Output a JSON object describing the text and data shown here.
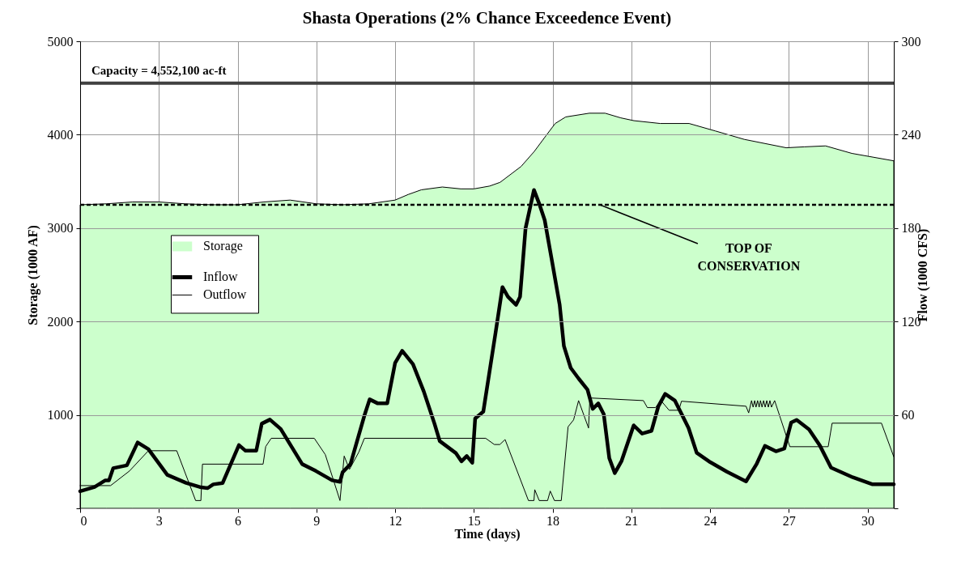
{
  "chart_data": {
    "type": "line",
    "title": "Shasta Operations (2% Chance Exceedence Event)",
    "xlabel": "Time (days)",
    "ylabel": "Storage (1000 AF)",
    "y2label": "Flow (1000 CFS)",
    "xlim": [
      0,
      31
    ],
    "xticks": [
      0,
      3,
      6,
      9,
      12,
      15,
      18,
      21,
      24,
      27,
      30
    ],
    "ylim": [
      0,
      5000
    ],
    "yticks": [
      {
        "value": 0,
        "label": null
      },
      1000,
      2000,
      3000,
      4000,
      5000
    ],
    "y2lim": [
      0,
      300
    ],
    "y2ticks": [
      {
        "value": 0,
        "label": null
      },
      60,
      120,
      180,
      240,
      300
    ],
    "grid": true,
    "legend": "left",
    "series": [
      {
        "name": "Storage",
        "type": "area",
        "color": "#ccffcc",
        "x": [
          0,
          1,
          2,
          3,
          4,
          5,
          6,
          7,
          8,
          9,
          10,
          11,
          12,
          12.5,
          13,
          13.8,
          14.5,
          15,
          15.6,
          16,
          16.8,
          17.3,
          17.75,
          18.1,
          18.5,
          19.4,
          20,
          20.6,
          21.1,
          22.1,
          23.2,
          24.2,
          25.3,
          26.9,
          27.6,
          28.4,
          29.4,
          30.2,
          31
        ],
        "values": [
          3250,
          3260,
          3280,
          3280,
          3260,
          3250,
          3250,
          3280,
          3300,
          3260,
          3250,
          3260,
          3300,
          3360,
          3410,
          3440,
          3420,
          3420,
          3450,
          3490,
          3660,
          3820,
          3990,
          4120,
          4190,
          4230,
          4230,
          4180,
          4150,
          4120,
          4120,
          4040,
          3950,
          3860,
          3870,
          3880,
          3800,
          3760,
          3720
        ]
      },
      {
        "name": "Inflow",
        "axis": "y2",
        "color": "#000000",
        "x": [
          0,
          0.55,
          0.96,
          1.1,
          1.26,
          1.78,
          2.19,
          2.6,
          3.32,
          4.04,
          4.56,
          4.86,
          5.07,
          5.43,
          6.05,
          6.3,
          6.71,
          6.92,
          7.23,
          7.64,
          8.46,
          8.98,
          9.6,
          9.9,
          10,
          10.3,
          10.83,
          11.03,
          11.34,
          11.7,
          12,
          12.27,
          12.68,
          13.09,
          13.5,
          13.7,
          14.32,
          14.53,
          14.73,
          14.94,
          15.05,
          15.36,
          15.83,
          16.09,
          16.3,
          16.61,
          16.76,
          16.97,
          17.29,
          17.49,
          17.7,
          17.96,
          18.27,
          18.43,
          18.69,
          19,
          19.33,
          19.53,
          19.74,
          19.95,
          20.16,
          20.37,
          20.63,
          21.09,
          21.41,
          21.77,
          22.03,
          22.29,
          22.66,
          23.18,
          23.49,
          24.01,
          24.64,
          25.37,
          25.78,
          26.09,
          26.51,
          26.83,
          27.09,
          27.3,
          27.77,
          28.19,
          28.61,
          29.44,
          30.17,
          31
        ],
        "values": [
          11,
          13.7,
          18,
          18,
          25.8,
          27.6,
          42.3,
          38,
          21.5,
          16.3,
          13.7,
          13,
          15.4,
          16.3,
          40.6,
          37,
          37,
          54.4,
          57,
          51,
          28.4,
          24,
          18,
          17,
          23.2,
          28.4,
          59.6,
          70,
          67.4,
          67.4,
          93.4,
          101.2,
          92.6,
          75.2,
          54.4,
          43.2,
          35.4,
          30.2,
          33.6,
          29.3,
          57.7,
          62.1,
          113.1,
          142.1,
          135.9,
          130.7,
          135.9,
          179.9,
          204.5,
          195.7,
          185.1,
          160.5,
          130.7,
          104.3,
          90.2,
          83.2,
          76.2,
          63.9,
          67.4,
          60.4,
          32.2,
          22.6,
          30.5,
          53.3,
          48,
          49.8,
          65.6,
          73.5,
          69.2,
          51.6,
          35.7,
          29.6,
          23.5,
          17.3,
          28.7,
          40.1,
          36.6,
          38.4,
          55.1,
          56.8,
          50.7,
          40.1,
          26.1,
          19.9,
          15.5,
          15.5
        ]
      },
      {
        "name": "Outflow",
        "axis": "y2",
        "color": "#000000",
        "x": [
          0,
          1.16,
          1.88,
          2.6,
          3.68,
          4.4,
          4.6,
          4.66,
          6.97,
          7.07,
          7.28,
          8.92,
          9.34,
          9.9,
          10.06,
          10.26,
          10.62,
          10.83,
          15.45,
          15.78,
          15.99,
          16.19,
          17.08,
          17.29,
          17.32,
          17.49,
          17.81,
          17.91,
          18.07,
          18.33,
          18.59,
          18.8,
          18.99,
          19.37,
          19.42,
          21.46,
          21.61,
          21.92,
          22.13,
          22.44,
          22.81,
          22.91,
          25.37,
          25.47,
          25.58,
          25.64,
          25.7,
          25.75,
          25.81,
          25.87,
          25.92,
          25.98,
          26.04,
          26.1,
          26.16,
          26.22,
          26.28,
          26.34,
          26.46,
          27.04,
          28.5,
          28.65,
          30.53,
          31
        ],
        "values": [
          14.6,
          14.6,
          24,
          37,
          37,
          5,
          5,
          28.4,
          28.4,
          39.7,
          45,
          45,
          34.5,
          5,
          33.6,
          25,
          36.2,
          45,
          45,
          41,
          41,
          44.2,
          5,
          5,
          12,
          5,
          5,
          11.1,
          5,
          5,
          52.4,
          56.8,
          69.2,
          51.6,
          70.9,
          69.2,
          64.7,
          64.7,
          69.2,
          63,
          63,
          68.8,
          65.6,
          61.3,
          69.2,
          65,
          69.2,
          65,
          69.2,
          65,
          69.2,
          65,
          69.2,
          65,
          69.2,
          65,
          69.2,
          65,
          69.2,
          39.6,
          39.6,
          54.7,
          54.7,
          33.1
        ]
      }
    ],
    "ref_lines": [
      {
        "axis": "y",
        "value": 4552.1,
        "label": "Capacity = 4,552,100 ac-ft",
        "color": "#404040",
        "line_style": "solid"
      },
      {
        "axis": "y",
        "value": 3250,
        "color": "#000000",
        "line_style": "dashed"
      }
    ],
    "annotations": [
      {
        "text": "TOP OF CONSERVATION",
        "x": 19.8,
        "y": 3250
      }
    ]
  }
}
